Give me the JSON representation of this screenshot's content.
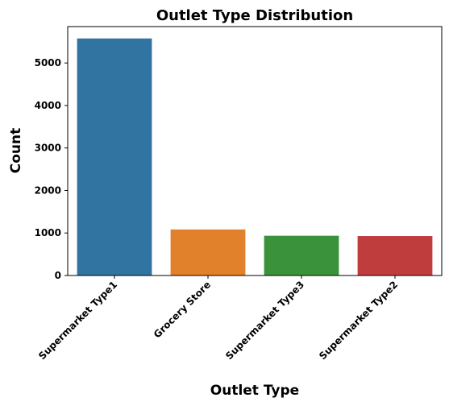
{
  "chart_data": {
    "type": "bar",
    "title": "Outlet Type Distribution",
    "xlabel": "Outlet Type",
    "ylabel": "Count",
    "categories": [
      "Supermarket Type1",
      "Grocery Store",
      "Supermarket Type3",
      "Supermarket Type2"
    ],
    "values": [
      5577,
      1083,
      935,
      928
    ],
    "colors": [
      "#3274a1",
      "#e1812c",
      "#3a923a",
      "#c03d3e"
    ],
    "ylim": [
      0,
      5856
    ],
    "yticks": [
      0,
      1000,
      2000,
      3000,
      4000,
      5000
    ],
    "grid": false,
    "legend": "none"
  }
}
